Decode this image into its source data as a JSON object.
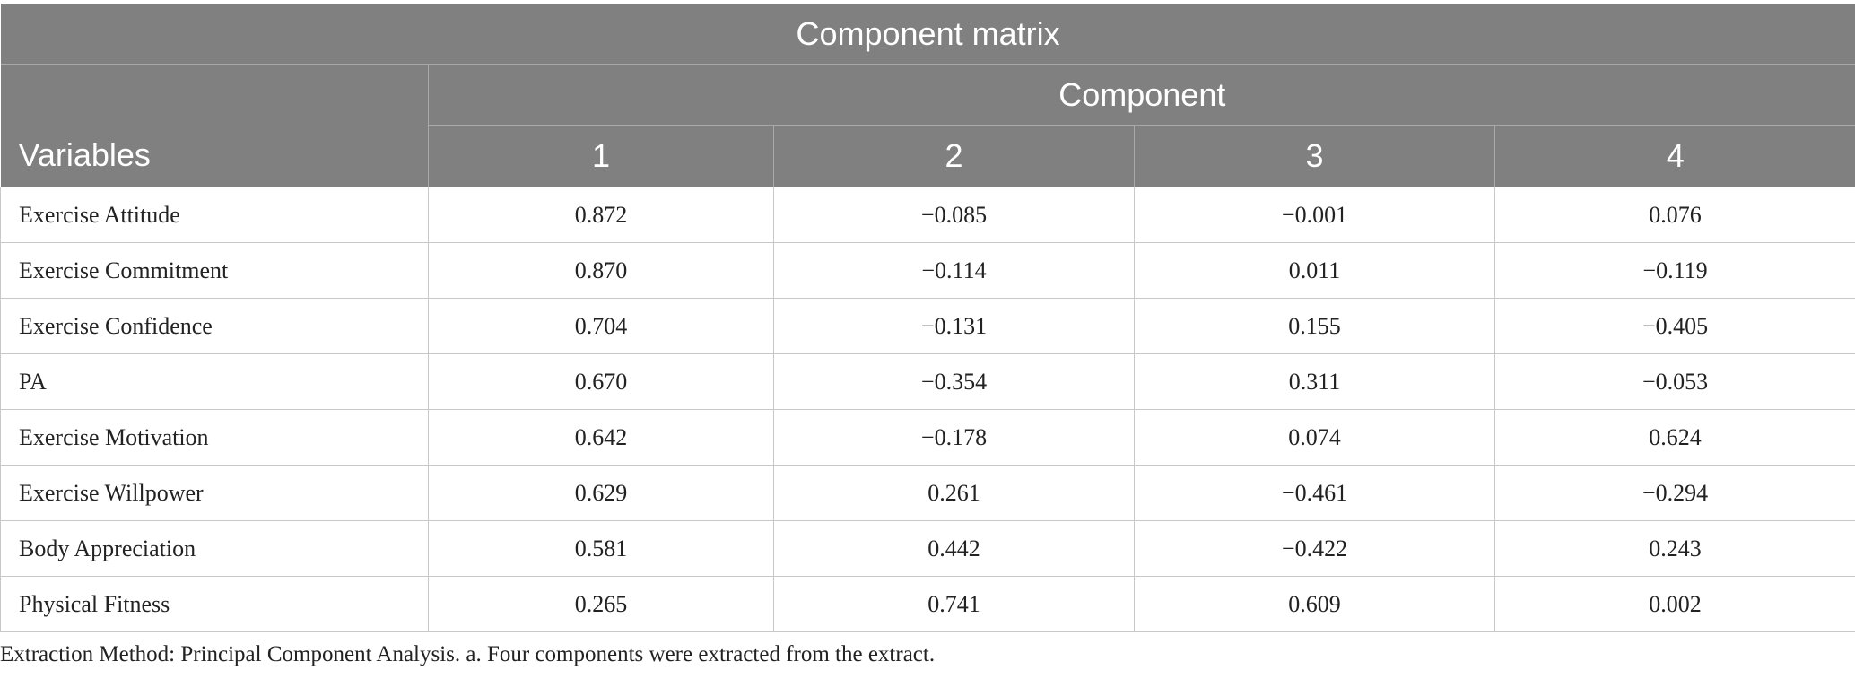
{
  "table": {
    "title": "Component matrix",
    "component_header": "Component",
    "variables_header": "Variables",
    "component_numbers": [
      "1",
      "2",
      "3",
      "4"
    ],
    "rows": [
      {
        "variable": "Exercise Attitude",
        "values": [
          "0.872",
          "−0.085",
          "−0.001",
          "0.076"
        ]
      },
      {
        "variable": "Exercise Commitment",
        "values": [
          "0.870",
          "−0.114",
          "0.011",
          "−0.119"
        ]
      },
      {
        "variable": "Exercise Confidence",
        "values": [
          "0.704",
          "−0.131",
          "0.155",
          "−0.405"
        ]
      },
      {
        "variable": "PA",
        "values": [
          "0.670",
          "−0.354",
          "0.311",
          "−0.053"
        ]
      },
      {
        "variable": "Exercise Motivation",
        "values": [
          "0.642",
          "−0.178",
          "0.074",
          "0.624"
        ]
      },
      {
        "variable": "Exercise Willpower",
        "values": [
          "0.629",
          "0.261",
          "−0.461",
          "−0.294"
        ]
      },
      {
        "variable": "Body Appreciation",
        "values": [
          "0.581",
          "0.442",
          "−0.422",
          "0.243"
        ]
      },
      {
        "variable": "Physical Fitness",
        "values": [
          "0.265",
          "0.741",
          "0.609",
          "0.002"
        ]
      }
    ]
  },
  "footnote": "Extraction Method: Principal Component Analysis. a. Four components were extracted from the extract.",
  "colors": {
    "header_bg": "#808080",
    "header_text": "#ffffff",
    "grid": "#c8c8c8"
  }
}
